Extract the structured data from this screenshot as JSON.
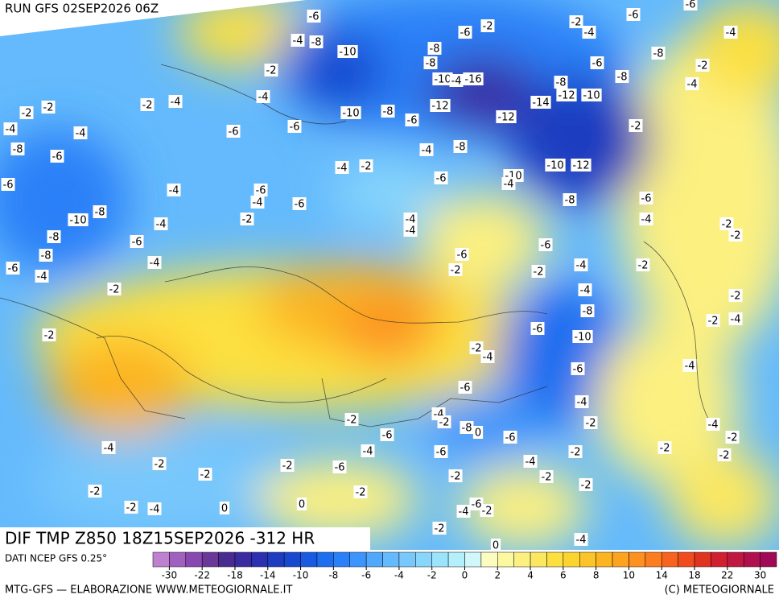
{
  "header": {
    "title": "RUN GFS 02SEP2026 06Z"
  },
  "map": {
    "caption": "DIF TMP Z850 18Z15SEP2026 -312 HR",
    "contour_labels": [
      -6,
      -4,
      -8,
      -2,
      -6,
      -2,
      -4,
      -6,
      -6,
      -4,
      -10,
      -8,
      -8,
      -10,
      -4,
      -16,
      -6,
      -8,
      -2,
      -8,
      -8,
      -4,
      -12,
      -10,
      -14,
      -12,
      -12,
      -2,
      -8,
      -10,
      -6,
      -2,
      -4,
      -4,
      -2,
      -2,
      -2,
      -4,
      -4,
      -6,
      -6,
      -8,
      -6,
      -4,
      -8,
      -4,
      -2,
      -10,
      -12,
      -10,
      -4,
      -6,
      -6,
      -6,
      -4,
      -6,
      -8,
      -4,
      -6,
      -8,
      -10,
      -4,
      -4,
      -4,
      -4,
      -2,
      -2,
      -8,
      -2,
      -6,
      -6,
      -6,
      -8,
      -4,
      -4,
      -2,
      -2,
      -2,
      -6,
      -4,
      -2,
      -4,
      -2,
      -8,
      -2,
      -4,
      -6,
      -2,
      -10,
      -2,
      -4,
      -6,
      -4,
      -6,
      -4,
      -4,
      -4,
      -2,
      -2,
      -2,
      -8,
      0,
      -6,
      -6,
      -2,
      -4,
      -4,
      -6,
      -2,
      -2,
      -2,
      -2,
      -2,
      -6,
      -4,
      -2,
      -2,
      -2,
      -2,
      -2,
      -2,
      -2,
      -4,
      0,
      0,
      -4,
      -2,
      -6,
      -2,
      -4,
      0
    ]
  },
  "legend": {
    "source": "DATI NCEP GFS 0.25°",
    "colors": [
      "#c080d0",
      "#a060c0",
      "#8848b0",
      "#6a3898",
      "#4a2c90",
      "#3a2ca0",
      "#2a30b0",
      "#1e3cc0",
      "#1848d0",
      "#1a5ae0",
      "#1e6ef0",
      "#2a80f8",
      "#3c94fc",
      "#50a8fc",
      "#64bafc",
      "#78c8fc",
      "#88d6fc",
      "#9ce4fc",
      "#b4f0fc",
      "#d0f8fc",
      "#fcfcc0",
      "#fcf8a0",
      "#fcf080",
      "#fce860",
      "#fce040",
      "#fcd430",
      "#fcc428",
      "#fcb420",
      "#fca420",
      "#fc9020",
      "#fc7c20",
      "#f86420",
      "#f04c20",
      "#e03420",
      "#d02030",
      "#c01840",
      "#b01050",
      "#a00858"
    ],
    "ticks": [
      -30,
      -22,
      -18,
      -14,
      -10,
      -8,
      -6,
      -4,
      -2,
      0,
      2,
      4,
      6,
      8,
      10,
      14,
      18,
      22,
      30
    ]
  },
  "footer": {
    "left": "MTG-GFS — ELABORAZIONE WWW.METEOGIORNALE.IT",
    "right": "(C) METEOGIORNALE"
  }
}
